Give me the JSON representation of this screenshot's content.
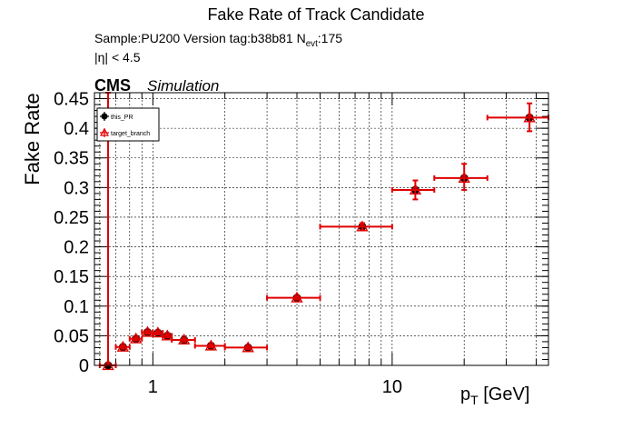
{
  "header": {
    "title": "Fake Rate of Track Candidate",
    "sample_label": "Sample:PU200   Version tag:b38b81  N",
    "nevt_sub": "evt",
    "nevt_value": ":175",
    "eta_cut": "|η| < 4.5",
    "cms_label": "CMS",
    "sim_label": "Simulation"
  },
  "chart_data": {
    "type": "scatter",
    "title": "Fake Rate of Track Candidate",
    "xlabel": "p_T [GeV]",
    "xlabel_main": "p",
    "xlabel_sub": "T",
    "xlabel_unit": " [GeV]",
    "ylabel": "Fake Rate",
    "xscale": "log",
    "xlim": [
      0.57,
      45
    ],
    "ylim": [
      0,
      0.46
    ],
    "grid": true,
    "legend_position": "top-left",
    "x_tick_labels": [
      "1",
      "10"
    ],
    "y_tick_labels": [
      "0",
      "0.05",
      "0.1",
      "0.15",
      "0.2",
      "0.25",
      "0.3",
      "0.35",
      "0.4",
      "0.45"
    ],
    "series": [
      {
        "name": "this_PR",
        "color": "#000000",
        "marker": "circle",
        "points": [
          {
            "x": 0.65,
            "y": 0.0,
            "xlo": 0.6,
            "xhi": 0.7,
            "ylo": 0.0,
            "yhi": 0.52
          },
          {
            "x": 0.75,
            "y": 0.031,
            "xlo": 0.7,
            "xhi": 0.8,
            "ylo": 0.028,
            "yhi": 0.034
          },
          {
            "x": 0.85,
            "y": 0.045,
            "xlo": 0.8,
            "xhi": 0.9,
            "ylo": 0.042,
            "yhi": 0.048
          },
          {
            "x": 0.95,
            "y": 0.056,
            "xlo": 0.9,
            "xhi": 1.0,
            "ylo": 0.053,
            "yhi": 0.059
          },
          {
            "x": 1.05,
            "y": 0.055,
            "xlo": 1.0,
            "xhi": 1.1,
            "ylo": 0.052,
            "yhi": 0.058
          },
          {
            "x": 1.15,
            "y": 0.05,
            "xlo": 1.1,
            "xhi": 1.2,
            "ylo": 0.047,
            "yhi": 0.053
          },
          {
            "x": 1.35,
            "y": 0.043,
            "xlo": 1.2,
            "xhi": 1.5,
            "ylo": 0.04,
            "yhi": 0.046
          },
          {
            "x": 1.75,
            "y": 0.033,
            "xlo": 1.5,
            "xhi": 2.0,
            "ylo": 0.03,
            "yhi": 0.036
          },
          {
            "x": 2.5,
            "y": 0.03,
            "xlo": 2.0,
            "xhi": 3.0,
            "ylo": 0.027,
            "yhi": 0.033
          },
          {
            "x": 4.0,
            "y": 0.114,
            "xlo": 3.0,
            "xhi": 5.0,
            "ylo": 0.111,
            "yhi": 0.117
          },
          {
            "x": 7.5,
            "y": 0.234,
            "xlo": 5.0,
            "xhi": 10.0,
            "ylo": 0.228,
            "yhi": 0.24
          },
          {
            "x": 12.5,
            "y": 0.296,
            "xlo": 10.0,
            "xhi": 15.0,
            "ylo": 0.28,
            "yhi": 0.312
          },
          {
            "x": 20.0,
            "y": 0.316,
            "xlo": 15.0,
            "xhi": 25.0,
            "ylo": 0.296,
            "yhi": 0.34
          },
          {
            "x": 37.5,
            "y": 0.418,
            "xlo": 25.0,
            "xhi": 50.0,
            "ylo": 0.395,
            "yhi": 0.442
          }
        ]
      },
      {
        "name": "target_branch",
        "color": "#e00000",
        "marker": "triangle-open",
        "points": [
          {
            "x": 0.65,
            "y": 0.0,
            "xlo": 0.6,
            "xhi": 0.7,
            "ylo": 0.0,
            "yhi": 0.52
          },
          {
            "x": 0.75,
            "y": 0.031,
            "xlo": 0.7,
            "xhi": 0.8,
            "ylo": 0.028,
            "yhi": 0.034
          },
          {
            "x": 0.85,
            "y": 0.045,
            "xlo": 0.8,
            "xhi": 0.9,
            "ylo": 0.042,
            "yhi": 0.048
          },
          {
            "x": 0.95,
            "y": 0.056,
            "xlo": 0.9,
            "xhi": 1.0,
            "ylo": 0.053,
            "yhi": 0.059
          },
          {
            "x": 1.05,
            "y": 0.055,
            "xlo": 1.0,
            "xhi": 1.1,
            "ylo": 0.052,
            "yhi": 0.058
          },
          {
            "x": 1.15,
            "y": 0.05,
            "xlo": 1.1,
            "xhi": 1.2,
            "ylo": 0.047,
            "yhi": 0.053
          },
          {
            "x": 1.35,
            "y": 0.043,
            "xlo": 1.2,
            "xhi": 1.5,
            "ylo": 0.04,
            "yhi": 0.046
          },
          {
            "x": 1.75,
            "y": 0.033,
            "xlo": 1.5,
            "xhi": 2.0,
            "ylo": 0.03,
            "yhi": 0.036
          },
          {
            "x": 2.5,
            "y": 0.03,
            "xlo": 2.0,
            "xhi": 3.0,
            "ylo": 0.027,
            "yhi": 0.033
          },
          {
            "x": 4.0,
            "y": 0.114,
            "xlo": 3.0,
            "xhi": 5.0,
            "ylo": 0.111,
            "yhi": 0.117
          },
          {
            "x": 7.5,
            "y": 0.234,
            "xlo": 5.0,
            "xhi": 10.0,
            "ylo": 0.228,
            "yhi": 0.24
          },
          {
            "x": 12.5,
            "y": 0.296,
            "xlo": 10.0,
            "xhi": 15.0,
            "ylo": 0.28,
            "yhi": 0.312
          },
          {
            "x": 20.0,
            "y": 0.316,
            "xlo": 15.0,
            "xhi": 25.0,
            "ylo": 0.296,
            "yhi": 0.34
          },
          {
            "x": 37.5,
            "y": 0.418,
            "xlo": 25.0,
            "xhi": 50.0,
            "ylo": 0.395,
            "yhi": 0.442
          }
        ]
      }
    ]
  }
}
